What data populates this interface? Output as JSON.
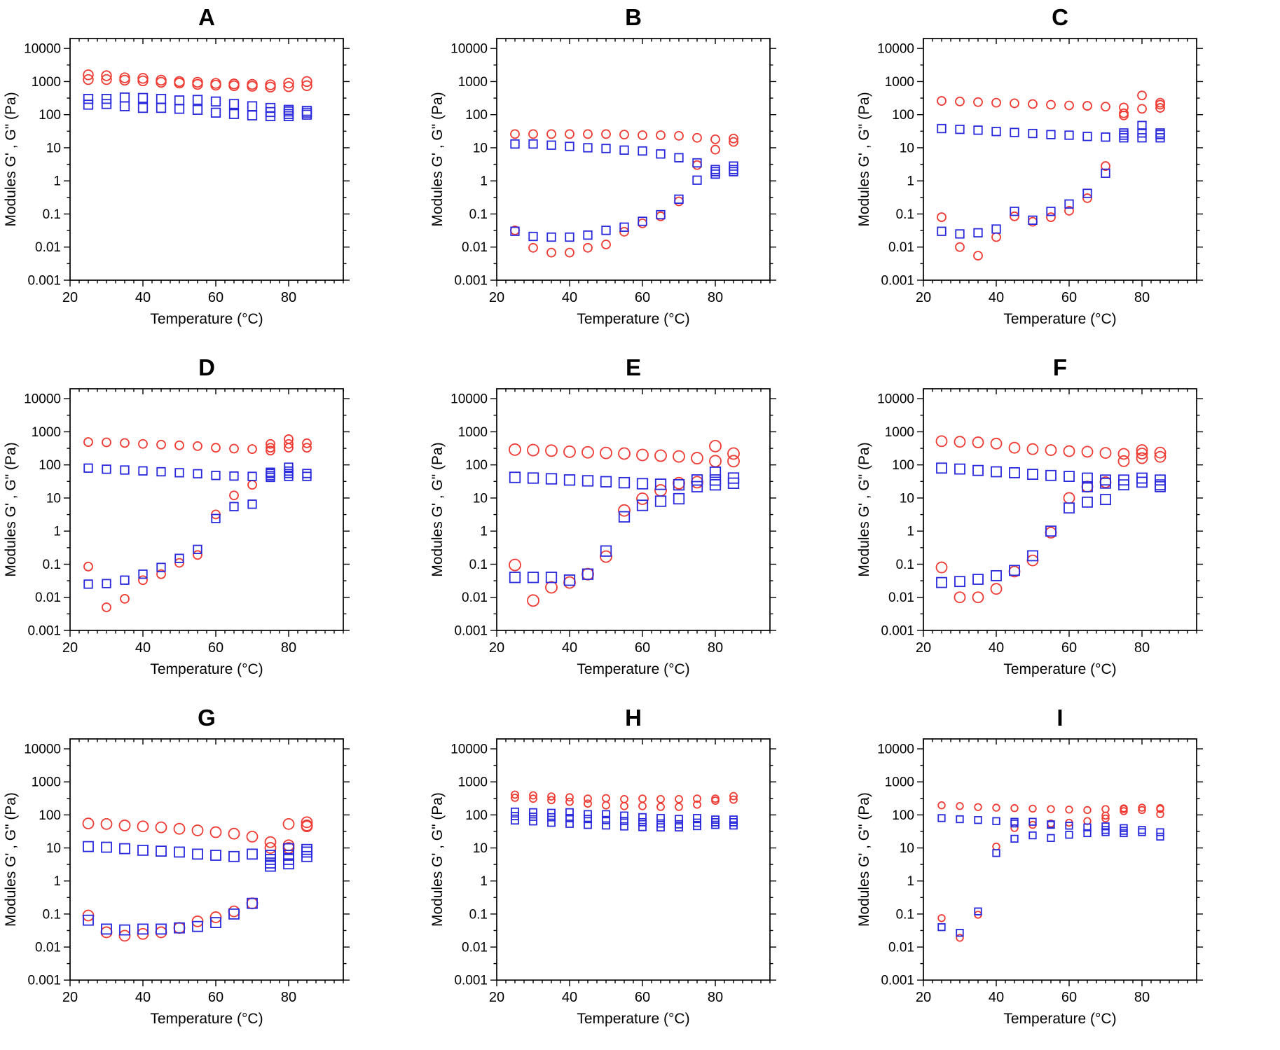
{
  "figure": {
    "ylabel": "Modules G' , G\" (Pa)",
    "xlabel": "Temperature (°C)",
    "y_tick_labels": [
      "10000",
      "1000",
      "100",
      "10",
      "1",
      "0.1",
      "0.01",
      "0.001"
    ],
    "x_tick_labels": [
      "20",
      "40",
      "60",
      "80"
    ],
    "x_ticks": [
      20,
      40,
      60,
      80
    ],
    "x_minor_step": 2.5,
    "xlim": [
      20,
      95
    ],
    "ylim": [
      0.001,
      10000
    ],
    "y_scale": "log",
    "colors": {
      "red_circle": "#ee3b33",
      "blue_square": "#2828dc",
      "axis": "#000000",
      "background": "#ffffff"
    },
    "temperatures": [
      25,
      30,
      35,
      40,
      45,
      50,
      55,
      60,
      65,
      70,
      75,
      80,
      85
    ]
  },
  "chart_data": [
    {
      "type": "scatter",
      "title": "A",
      "marker_r": 6.8,
      "marker_s": 12.5,
      "red_circles": [
        [
          1600,
          1500,
          1300,
          1250,
          1100,
          1000,
          950,
          880,
          850,
          820,
          800,
          900,
          1000
        ],
        [
          1150,
          1150,
          1100,
          1050,
          950,
          900,
          820,
          780,
          750,
          720,
          680,
          700,
          750
        ]
      ],
      "blue_squares": [
        [
          300,
          300,
          330,
          320,
          300,
          270,
          280,
          250,
          210,
          180,
          160,
          140,
          130
        ],
        [
          200,
          210,
          180,
          160,
          160,
          150,
          140,
          115,
          105,
          95,
          90,
          90,
          100
        ]
      ],
      "red_extra": [],
      "blue_extra": [
        [
          75,
          120
        ],
        [
          80,
          125
        ],
        [
          80,
          105
        ],
        [
          85,
          115
        ]
      ]
    },
    {
      "type": "scatter",
      "title": "B",
      "marker_r": 6,
      "marker_s": 11.5,
      "red_circles": [
        [
          26,
          26,
          26,
          26,
          26,
          26,
          25,
          24,
          24,
          23,
          20,
          18,
          19
        ],
        [
          0.032,
          0.0095,
          0.0068,
          0.0068,
          0.0095,
          0.012,
          0.029,
          0.052,
          0.085,
          0.24,
          3.0,
          8.8,
          15
        ]
      ],
      "blue_squares": [
        [
          13,
          13,
          12,
          11,
          10,
          9.5,
          8.5,
          8,
          6.5,
          5,
          3.5,
          2.2,
          2.8
        ],
        [
          0.03,
          0.021,
          0.02,
          0.02,
          0.023,
          0.032,
          0.04,
          0.06,
          0.095,
          0.28,
          1.05,
          1.6,
          1.9
        ]
      ],
      "red_extra": [],
      "blue_extra": [
        [
          80,
          1.9
        ],
        [
          85,
          2.2
        ]
      ]
    },
    {
      "type": "scatter",
      "title": "C",
      "marker_r": 6,
      "marker_s": 11.5,
      "red_circles": [
        [
          260,
          250,
          240,
          230,
          220,
          210,
          200,
          190,
          185,
          175,
          165,
          380,
          230
        ],
        [
          0.08,
          0.01,
          0.0055,
          0.02,
          0.085,
          0.058,
          0.08,
          0.125,
          0.3,
          2.8,
          95,
          150,
          160
        ]
      ],
      "blue_squares": [
        [
          38,
          36,
          34,
          31,
          29,
          27,
          25,
          24,
          22,
          21,
          28,
          47,
          28
        ],
        [
          0.03,
          0.025,
          0.027,
          0.035,
          0.12,
          0.065,
          0.12,
          0.2,
          0.42,
          1.7,
          20,
          20,
          20
        ]
      ],
      "red_extra": [
        [
          75,
          110
        ],
        [
          85,
          200
        ]
      ],
      "blue_extra": [
        [
          75,
          24
        ],
        [
          80,
          28
        ],
        [
          85,
          25
        ]
      ]
    },
    {
      "type": "scatter",
      "title": "D",
      "marker_r": 6,
      "marker_s": 11.5,
      "red_circles": [
        [
          490,
          480,
          460,
          430,
          410,
          390,
          370,
          330,
          310,
          300,
          430,
          600,
          450
        ],
        [
          0.085,
          0.005,
          0.009,
          0.033,
          0.05,
          0.11,
          0.19,
          3.2,
          12,
          25,
          270,
          330,
          330
        ]
      ],
      "blue_squares": [
        [
          80,
          74,
          70,
          66,
          62,
          58,
          54,
          48,
          46,
          45,
          60,
          85,
          55
        ],
        [
          0.025,
          0.026,
          0.033,
          0.05,
          0.08,
          0.15,
          0.28,
          2.4,
          5.5,
          6.5,
          42,
          45,
          45
        ]
      ],
      "red_extra": [
        [
          75,
          330
        ],
        [
          80,
          430
        ]
      ],
      "blue_extra": [
        [
          75,
          55
        ],
        [
          75,
          47
        ],
        [
          80,
          65
        ],
        [
          80,
          55
        ]
      ]
    },
    {
      "type": "scatter",
      "title": "E",
      "marker_r": 8,
      "marker_s": 14.5,
      "red_circles": [
        [
          290,
          280,
          270,
          250,
          240,
          230,
          220,
          200,
          190,
          180,
          160,
          370,
          220
        ],
        [
          0.095,
          0.008,
          0.02,
          0.028,
          0.05,
          0.17,
          4.2,
          9.5,
          17,
          28,
          30,
          130,
          130
        ]
      ],
      "blue_squares": [
        [
          42,
          40,
          38,
          35,
          33,
          31,
          29,
          27,
          26,
          25,
          35,
          60,
          40
        ],
        [
          0.04,
          0.04,
          0.04,
          0.033,
          0.05,
          0.25,
          2.7,
          6,
          8,
          9.5,
          22,
          25,
          28
        ]
      ],
      "red_extra": [],
      "blue_extra": [
        [
          80,
          35
        ]
      ]
    },
    {
      "type": "scatter",
      "title": "F",
      "marker_r": 7.5,
      "marker_s": 14,
      "red_circles": [
        [
          520,
          500,
          480,
          440,
          330,
          300,
          280,
          260,
          250,
          230,
          215,
          280,
          235
        ],
        [
          0.08,
          0.01,
          0.01,
          0.018,
          0.06,
          0.13,
          0.9,
          10,
          22,
          30,
          130,
          160,
          175
        ]
      ],
      "blue_squares": [
        [
          80,
          75,
          68,
          62,
          58,
          52,
          48,
          45,
          40,
          35,
          35,
          40,
          35
        ],
        [
          0.028,
          0.03,
          0.035,
          0.045,
          0.065,
          0.18,
          1.0,
          5,
          7.5,
          9,
          25,
          30,
          25
        ]
      ],
      "red_extra": [
        [
          80,
          220
        ]
      ],
      "blue_extra": [
        [
          65,
          22
        ],
        [
          70,
          28
        ],
        [
          85,
          22
        ]
      ]
    },
    {
      "type": "scatter",
      "title": "G",
      "marker_r": 7.5,
      "marker_s": 14,
      "red_circles": [
        [
          55,
          53,
          48,
          45,
          42,
          38,
          34,
          30,
          27,
          22,
          15,
          53,
          60
        ],
        [
          0.09,
          0.028,
          0.022,
          0.025,
          0.028,
          0.038,
          0.06,
          0.08,
          0.12,
          0.21,
          10,
          12,
          48
        ]
      ],
      "blue_squares": [
        [
          11,
          10.5,
          9.5,
          8.5,
          8,
          7.5,
          6.5,
          6,
          5.5,
          6.5,
          6,
          9.5,
          9
        ],
        [
          0.065,
          0.035,
          0.033,
          0.035,
          0.035,
          0.038,
          0.042,
          0.055,
          0.1,
          0.21,
          3.5,
          4.5,
          5.5
        ]
      ],
      "red_extra": [
        [
          80,
          10
        ],
        [
          85,
          45
        ]
      ],
      "blue_extra": [
        [
          75,
          4.5
        ],
        [
          75,
          2.8
        ],
        [
          80,
          6
        ],
        [
          80,
          3.3
        ],
        [
          85,
          7.5
        ]
      ]
    },
    {
      "type": "scatter",
      "title": "H",
      "marker_r": 5,
      "marker_s": 10,
      "red_circles": [
        [
          410,
          390,
          360,
          340,
          310,
          320,
          300,
          310,
          300,
          300,
          310,
          310,
          370
        ],
        [
          330,
          310,
          280,
          250,
          220,
          195,
          185,
          185,
          175,
          175,
          205,
          270,
          290
        ]
      ],
      "blue_squares": [
        [
          125,
          120,
          115,
          120,
          105,
          105,
          95,
          85,
          80,
          75,
          80,
          72,
          72
        ],
        [
          92,
          88,
          85,
          80,
          75,
          70,
          65,
          60,
          55,
          52,
          58,
          60,
          60
        ],
        [
          68,
          64,
          58,
          54,
          50,
          48,
          45,
          43,
          42,
          42,
          46,
          50,
          48
        ]
      ],
      "red_extra": [],
      "blue_extra": []
    },
    {
      "type": "scatter",
      "title": "I",
      "marker_r": 4.8,
      "marker_s": 9.5,
      "red_circles": [
        [
          195,
          185,
          172,
          165,
          160,
          155,
          150,
          145,
          140,
          150,
          158,
          165,
          160
        ],
        [
          0.075,
          0.019,
          0.095,
          11,
          40,
          50,
          55,
          58,
          65,
          78,
          130,
          140,
          105
        ]
      ],
      "blue_squares": [
        [
          80,
          74,
          70,
          65,
          62,
          62,
          52,
          47,
          42,
          45,
          40,
          35,
          30
        ],
        [
          0.04,
          0.027,
          0.12,
          7,
          19,
          24,
          20,
          25,
          28,
          30,
          33,
          30,
          22
        ]
      ],
      "red_extra": [
        [
          70,
          95
        ],
        [
          75,
          150
        ],
        [
          85,
          150
        ]
      ],
      "blue_extra": [
        [
          45,
          55
        ],
        [
          55,
          50
        ],
        [
          70,
          35
        ],
        [
          75,
          28
        ]
      ]
    }
  ]
}
